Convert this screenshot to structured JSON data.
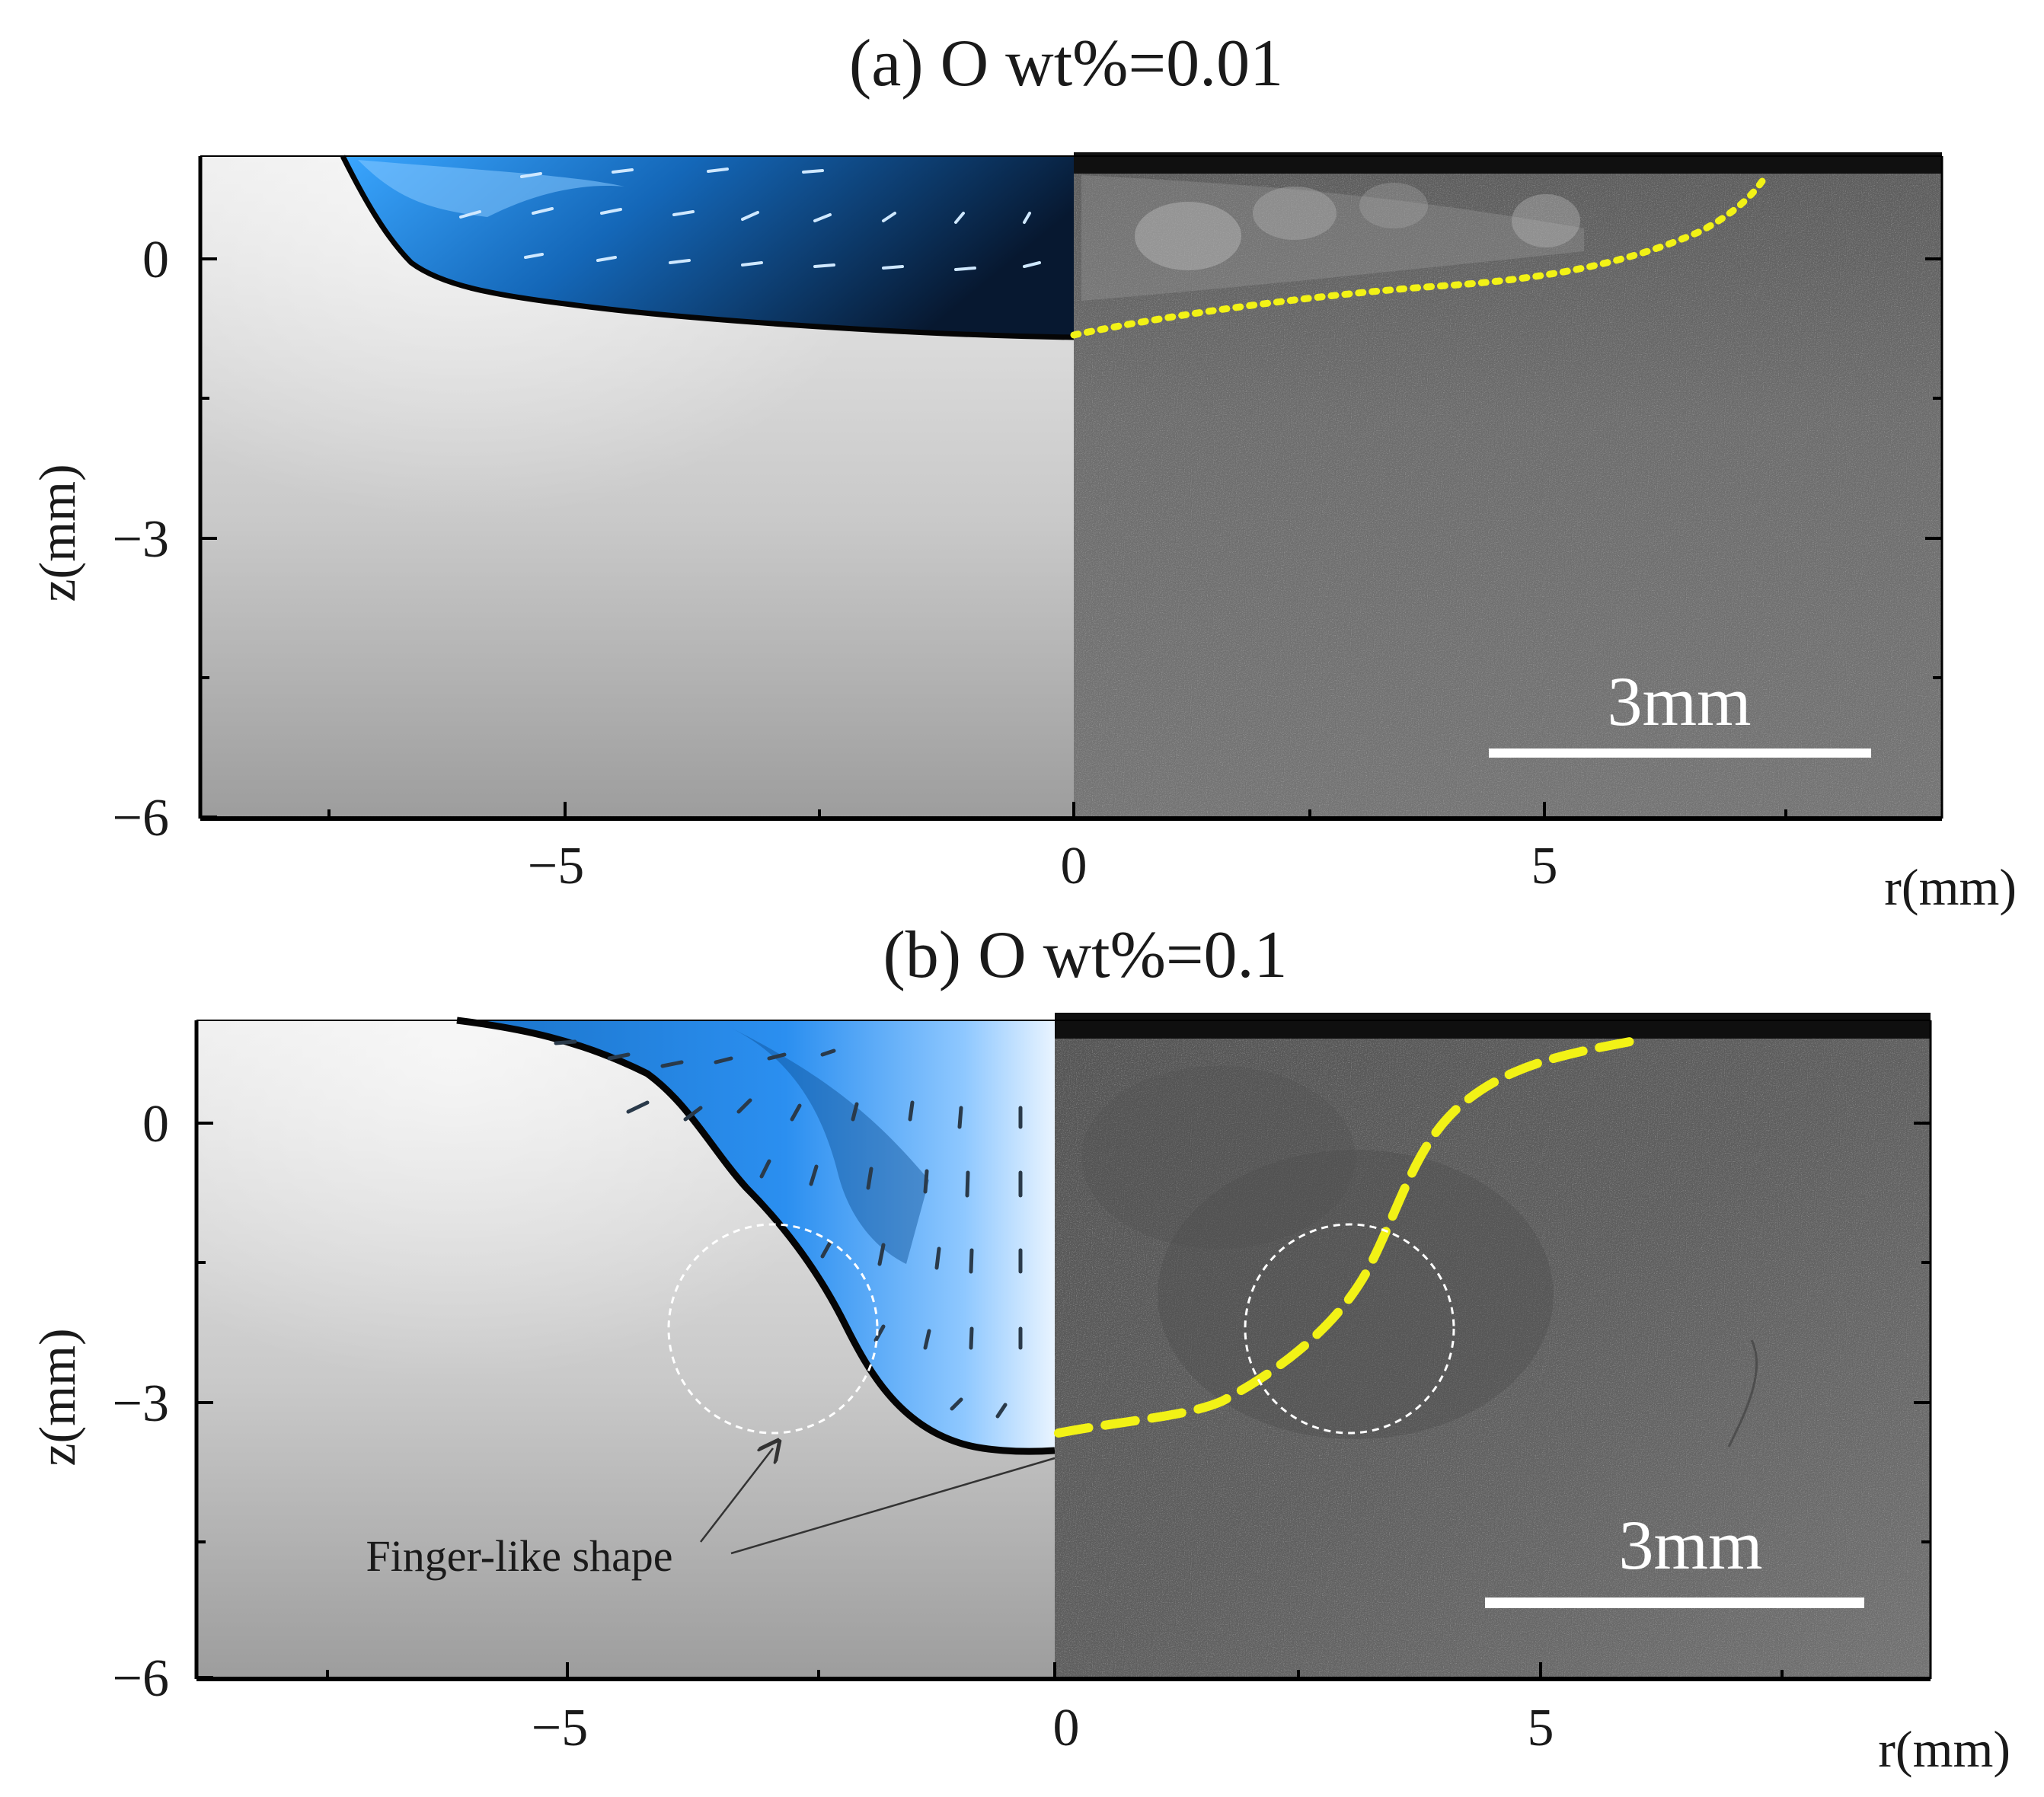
{
  "figure": {
    "panels": [
      {
        "title": "(a) O wt%=0.01",
        "x_label": "r(mm)",
        "y_label": "z(mm)",
        "x_ticks": [
          "−5",
          "0",
          "5"
        ],
        "y_ticks": [
          "0",
          "−3",
          "−6"
        ],
        "scale_bar_label": "3mm"
      },
      {
        "title": "(b) O wt%=0.1",
        "x_label": "r(mm)",
        "y_label": "z(mm)",
        "x_ticks": [
          "−5",
          "0",
          "5"
        ],
        "y_ticks": [
          "0",
          "−3",
          "−6"
        ],
        "scale_bar_label": "3mm",
        "annotation": "Finger-like shape"
      }
    ],
    "colors": {
      "melt_pool_blue": "#1c8ae6",
      "boundary_yellow": "#f2f216",
      "micrograph_gray": "#6c6c6c",
      "solid_gray": "#cfcfcf"
    }
  }
}
